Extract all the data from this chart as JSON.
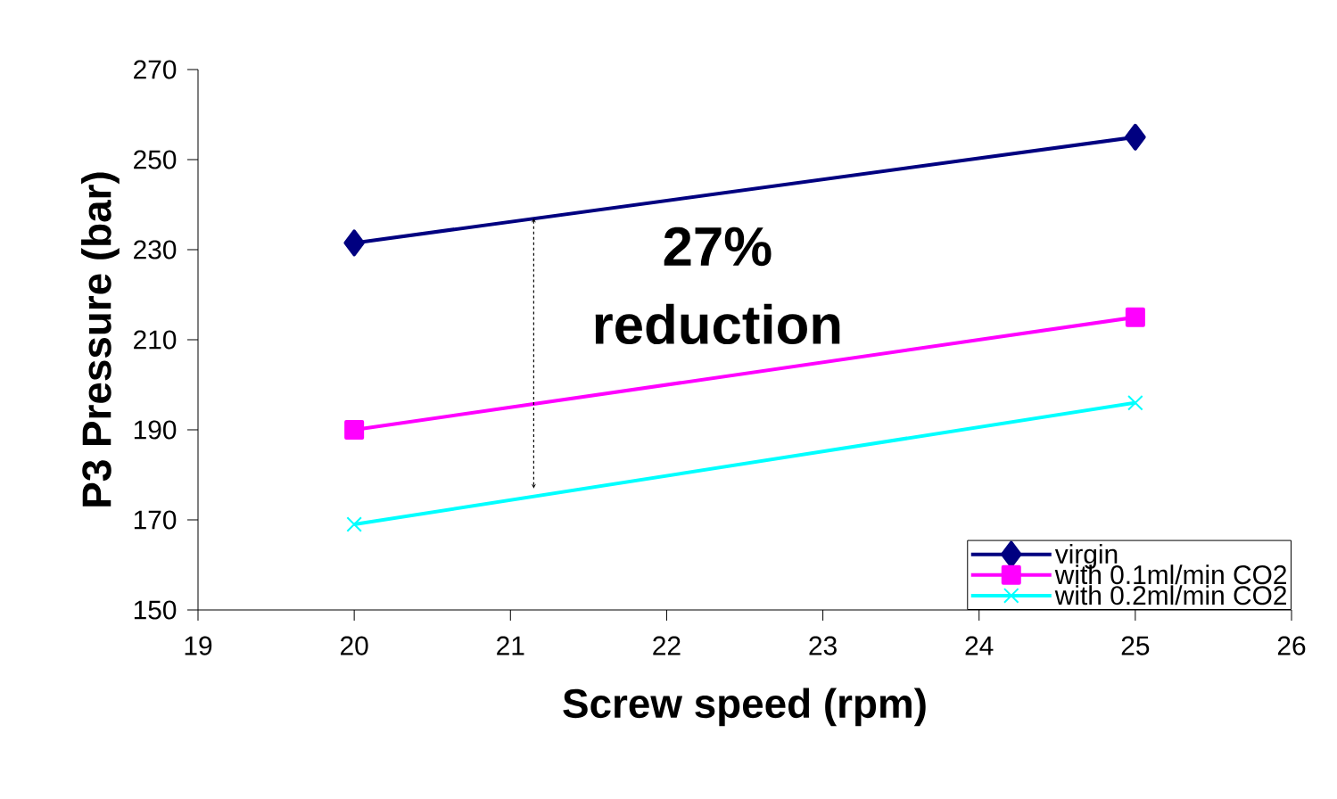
{
  "chart_data": {
    "type": "line",
    "xlabel": "Screw speed (rpm)",
    "ylabel": "P3  Pressure (bar)",
    "x": [
      20,
      25
    ],
    "series": [
      {
        "name": "virgin",
        "color": "#000080",
        "marker": "diamond",
        "values": [
          231.5,
          255
        ]
      },
      {
        "name": "with 0.1ml/min CO2",
        "color": "#ff00ff",
        "marker": "square",
        "values": [
          190,
          215
        ]
      },
      {
        "name": "with 0.2ml/min CO2",
        "color": "#00ffff",
        "marker": "cross",
        "values": [
          169,
          196
        ]
      }
    ],
    "xlim": [
      19,
      26
    ],
    "xticks": [
      19,
      20,
      21,
      22,
      23,
      24,
      25,
      26
    ],
    "ylim": [
      150,
      270
    ],
    "yticks": [
      150,
      170,
      190,
      210,
      230,
      250,
      270
    ],
    "grid": false,
    "legend": "bottom right",
    "line_style": "solid",
    "annotations": [
      "27% reduction"
    ]
  }
}
